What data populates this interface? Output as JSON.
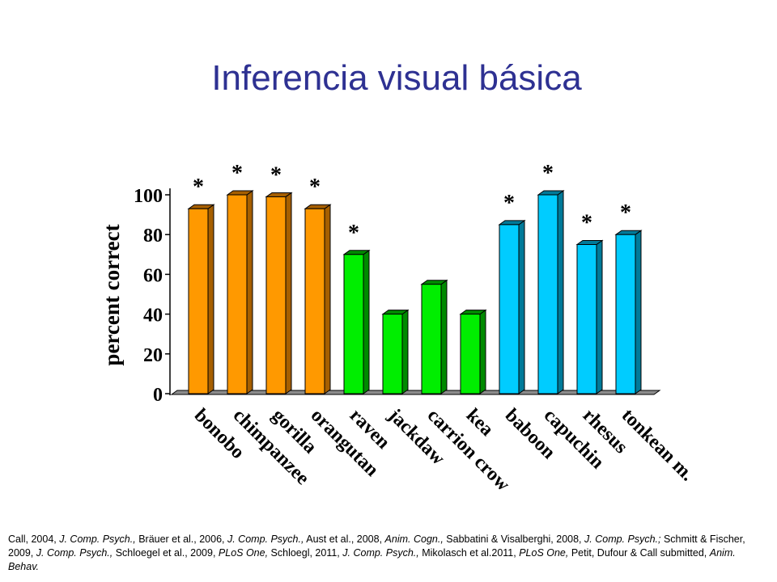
{
  "slide": {
    "title": "Inferencia visual básica"
  },
  "chart_data": {
    "type": "bar",
    "ylabel": "percent correct",
    "xlabel": "",
    "ylim": [
      0,
      100
    ],
    "yticks": [
      0,
      20,
      40,
      60,
      80,
      100
    ],
    "categories": [
      "bonobo",
      "chimpanzee",
      "gorilla",
      "orangutan",
      "raven",
      "jackdaw",
      "carrion crow",
      "kea",
      "baboon",
      "capuchin",
      "rhesus",
      "tonkean m."
    ],
    "values": [
      93,
      100,
      99,
      93,
      70,
      40,
      55,
      40,
      85,
      100,
      75,
      80
    ],
    "significant": [
      true,
      true,
      true,
      true,
      true,
      false,
      false,
      false,
      true,
      true,
      true,
      true
    ],
    "significance_marker": "*",
    "groups": [
      {
        "members": [
          "bonobo",
          "chimpanzee",
          "gorilla",
          "orangutan"
        ],
        "color": "#ff9900",
        "side_color": "#a65f00"
      },
      {
        "members": [
          "raven",
          "jackdaw",
          "carrion crow",
          "kea"
        ],
        "color": "#00ee00",
        "side_color": "#008a00"
      },
      {
        "members": [
          "baboon",
          "capuchin",
          "rhesus",
          "tonkean m."
        ],
        "color": "#00ccff",
        "side_color": "#007a99"
      }
    ],
    "grid": false,
    "style": "3d-bar"
  },
  "references": [
    {
      "text": "Call, 2004, ",
      "italic": false
    },
    {
      "text": "J. Comp. Psych.,",
      "italic": true
    },
    {
      "text": " Bräuer et al., 2006, ",
      "italic": false
    },
    {
      "text": "J. Comp. Psych.,",
      "italic": true
    },
    {
      "text": " Aust et al., 2008, ",
      "italic": false
    },
    {
      "text": "Anim. Cogn.,",
      "italic": true
    },
    {
      "text": " Sabbatini & Visalberghi, 2008, ",
      "italic": false
    },
    {
      "text": "J. Comp. Psych.;",
      "italic": true
    },
    {
      "text": " Schmitt & Fischer, 2009, ",
      "italic": false
    },
    {
      "text": "J. Comp. Psych.,",
      "italic": true
    },
    {
      "text": " Schloegel et al., 2009, ",
      "italic": false
    },
    {
      "text": "PLoS One,",
      "italic": true
    },
    {
      "text": " Schloegl, 2011, ",
      "italic": false
    },
    {
      "text": "J. Comp. Psych.,",
      "italic": true
    },
    {
      "text": " Mikolasch et al.2011, ",
      "italic": false
    },
    {
      "text": "PLoS One,",
      "italic": true
    },
    {
      "text": " Petit, Dufour & Call submitted, ",
      "italic": false
    },
    {
      "text": "Anim. Behav.",
      "italic": true
    }
  ]
}
